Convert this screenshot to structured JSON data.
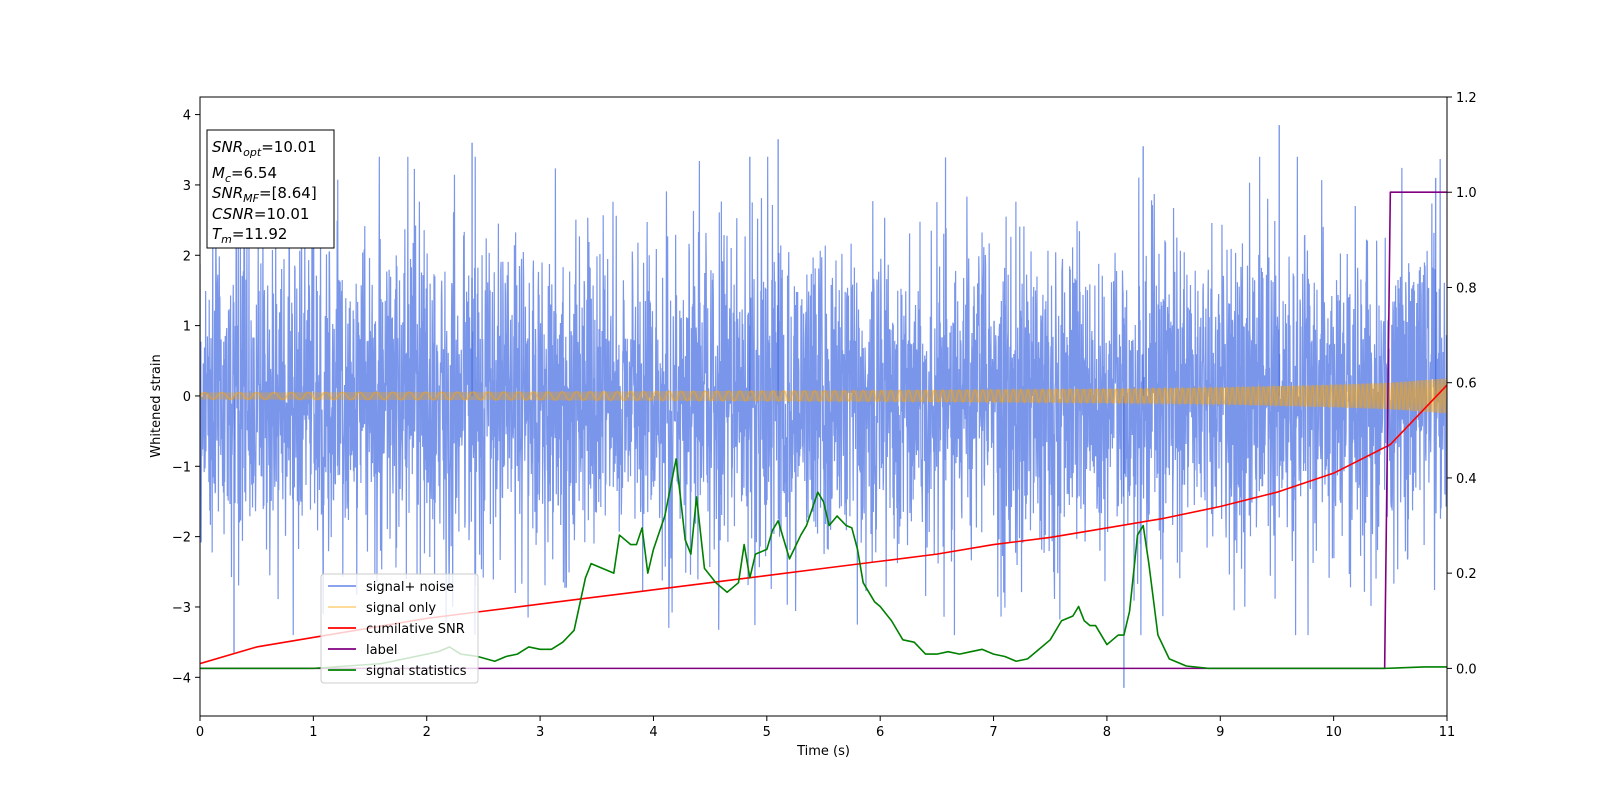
{
  "chart_data": {
    "type": "line",
    "title": "",
    "xlabel": "Time (s)",
    "ylabel": "Whitened strain",
    "ylabel_right": "",
    "xlim": [
      0,
      11
    ],
    "ylim": [
      -4.55,
      4.25
    ],
    "ylim_right": [
      -0.1,
      1.2
    ],
    "x_ticks": [
      0,
      1,
      2,
      3,
      4,
      5,
      6,
      7,
      8,
      9,
      10,
      11
    ],
    "y_ticks": [
      -4,
      -3,
      -2,
      -1,
      0,
      1,
      2,
      3,
      4
    ],
    "y_ticks_right": [
      0.0,
      0.2,
      0.4,
      0.6,
      0.8,
      1.0,
      1.2
    ],
    "grid": false,
    "legend_position": "lower-left",
    "annotation": [
      {
        "base": "SNR",
        "sub": "opt",
        "rest": "=10.01"
      },
      {
        "base": "M",
        "sub": "c",
        "rest": "=6.54"
      },
      {
        "base": "SNR",
        "sub": "MF",
        "rest": "=[8.64]"
      },
      {
        "base": "CSNR",
        "sub": "",
        "rest": "=10.01"
      },
      {
        "base": "T",
        "sub": "m",
        "rest": "=11.92"
      }
    ],
    "series": [
      {
        "name": "signal+ noise",
        "axis": "left",
        "color": "#4169e1",
        "opacity": 0.7,
        "description": "whitened noise plus injected signal, amplitude roughly within [-4, 4]",
        "notable_points": [
          {
            "x": 0.3,
            "y": -3.65
          },
          {
            "x": 2.4,
            "y": 3.6
          },
          {
            "x": 4.85,
            "y": 3.4
          },
          {
            "x": 5.1,
            "y": 3.65
          },
          {
            "x": 8.15,
            "y": -4.15
          },
          {
            "x": 8.32,
            "y": 3.55
          },
          {
            "x": 9.52,
            "y": 3.85
          },
          {
            "x": 10.9,
            "y": 3.1
          }
        ]
      },
      {
        "name": "signal only",
        "axis": "left",
        "color": "#ffa500",
        "opacity": 0.45,
        "description": "chirp waveform, amplitude envelope growing from ~0.05 at t=0 to ~0.25 at t=11",
        "envelope": {
          "x": [
            0,
            3,
            6,
            8,
            9,
            10,
            10.5,
            11
          ],
          "y": [
            0.05,
            0.06,
            0.08,
            0.1,
            0.12,
            0.16,
            0.19,
            0.25
          ]
        }
      },
      {
        "name": "cumilative SNR",
        "axis": "right",
        "color": "#ff0000",
        "x": [
          0,
          0.5,
          1,
          1.5,
          2,
          2.5,
          3,
          3.5,
          4,
          4.5,
          5,
          5.5,
          6,
          6.5,
          7,
          7.5,
          8,
          8.5,
          9,
          9.5,
          10,
          10.5,
          11
        ],
        "y": [
          0.01,
          0.045,
          0.065,
          0.085,
          0.105,
          0.12,
          0.135,
          0.15,
          0.165,
          0.18,
          0.195,
          0.21,
          0.225,
          0.24,
          0.26,
          0.275,
          0.295,
          0.315,
          0.34,
          0.37,
          0.41,
          0.47,
          0.595
        ]
      },
      {
        "name": "label",
        "axis": "right",
        "color": "#800080",
        "x": [
          0,
          10.45,
          10.5,
          11
        ],
        "y": [
          0,
          0,
          1,
          1
        ]
      },
      {
        "name": "signal statistics",
        "axis": "right",
        "color": "#008000",
        "x": [
          0,
          1,
          1.6,
          1.9,
          2.0,
          2.1,
          2.2,
          2.3,
          2.45,
          2.6,
          2.7,
          2.8,
          2.9,
          3.0,
          3.1,
          3.2,
          3.3,
          3.4,
          3.45,
          3.55,
          3.65,
          3.7,
          3.8,
          3.85,
          3.9,
          3.95,
          4.0,
          4.1,
          4.2,
          4.28,
          4.33,
          4.38,
          4.45,
          4.55,
          4.65,
          4.75,
          4.8,
          4.85,
          4.9,
          5.0,
          5.05,
          5.1,
          5.2,
          5.3,
          5.35,
          5.45,
          5.5,
          5.55,
          5.62,
          5.7,
          5.75,
          5.8,
          5.85,
          5.9,
          5.95,
          6.0,
          6.1,
          6.2,
          6.3,
          6.4,
          6.5,
          6.6,
          6.7,
          6.8,
          6.9,
          7.0,
          7.1,
          7.2,
          7.3,
          7.4,
          7.5,
          7.6,
          7.7,
          7.75,
          7.8,
          7.85,
          7.9,
          7.95,
          8.0,
          8.05,
          8.1,
          8.15,
          8.2,
          8.27,
          8.32,
          8.37,
          8.45,
          8.55,
          8.7,
          8.9,
          9.5,
          10.0,
          10.45,
          10.8,
          11
        ],
        "y": [
          0,
          0,
          0.01,
          0.025,
          0.03,
          0.035,
          0.045,
          0.03,
          0.025,
          0.015,
          0.025,
          0.03,
          0.045,
          0.04,
          0.04,
          0.055,
          0.08,
          0.19,
          0.22,
          0.21,
          0.2,
          0.28,
          0.26,
          0.26,
          0.295,
          0.2,
          0.25,
          0.32,
          0.44,
          0.27,
          0.24,
          0.36,
          0.21,
          0.18,
          0.16,
          0.18,
          0.26,
          0.19,
          0.24,
          0.25,
          0.29,
          0.31,
          0.23,
          0.28,
          0.3,
          0.37,
          0.35,
          0.3,
          0.32,
          0.3,
          0.295,
          0.25,
          0.18,
          0.16,
          0.14,
          0.13,
          0.1,
          0.06,
          0.055,
          0.03,
          0.03,
          0.035,
          0.03,
          0.035,
          0.04,
          0.03,
          0.025,
          0.015,
          0.02,
          0.04,
          0.06,
          0.1,
          0.11,
          0.13,
          0.1,
          0.09,
          0.09,
          0.07,
          0.05,
          0.06,
          0.07,
          0.07,
          0.12,
          0.28,
          0.3,
          0.22,
          0.07,
          0.02,
          0.005,
          0,
          0,
          0,
          0,
          0.003,
          0.003
        ]
      }
    ]
  }
}
